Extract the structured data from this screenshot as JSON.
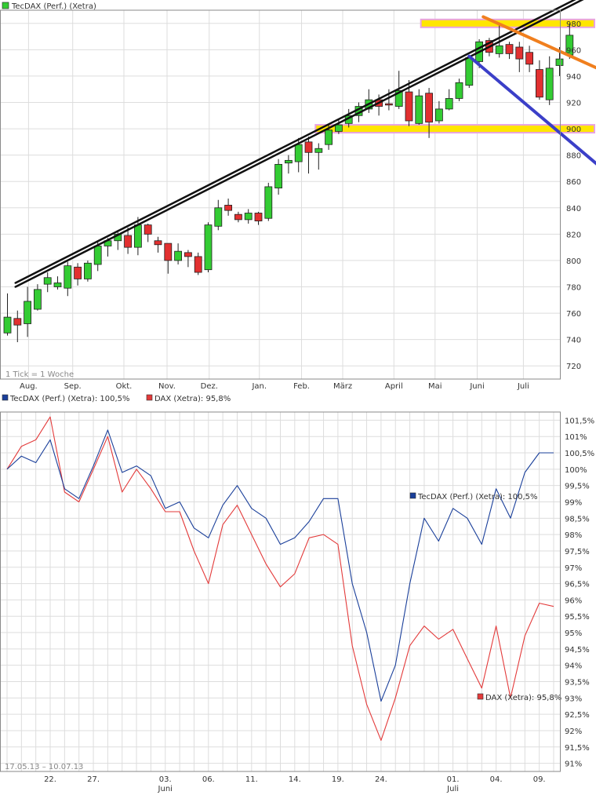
{
  "colors": {
    "grid": "#dddddd",
    "frame": "#8a8a8a",
    "text": "#333333",
    "subtle": "#888888",
    "up": "#33cc33",
    "down": "#e23030",
    "candle_edge": "#202020",
    "tecdax": "#1a3f9a",
    "dax": "#e33a3a",
    "channel": "#111111",
    "orange": "#f07f1e",
    "blue": "#3b3fc8",
    "band_fill": "#ffe600",
    "band_edge": "#e8a3e0"
  },
  "chart_data": [
    {
      "type": "candlestick",
      "legend": {
        "label": "TecDAX (Perf.) (Xetra)",
        "position": "top-left"
      },
      "footnote": "1 Tick = 1 Woche",
      "ylim": [
        710,
        990
      ],
      "y_ticks": [
        720,
        740,
        760,
        780,
        800,
        820,
        840,
        860,
        880,
        900,
        920,
        940,
        960,
        980
      ],
      "x_months": [
        {
          "label": "Aug.",
          "week": 2.1
        },
        {
          "label": "Sep.",
          "week": 6.5
        },
        {
          "label": "Okt.",
          "week": 11.6
        },
        {
          "label": "Nov.",
          "week": 15.9
        },
        {
          "label": "Dez.",
          "week": 20.1
        },
        {
          "label": "Jan.",
          "week": 25.1
        },
        {
          "label": "Feb.",
          "week": 29.3
        },
        {
          "label": "März",
          "week": 33.4
        },
        {
          "label": "April",
          "week": 38.5
        },
        {
          "label": "Mai",
          "week": 42.6
        },
        {
          "label": "Juni",
          "week": 46.8
        },
        {
          "label": "Juli",
          "week": 51.4
        }
      ],
      "candles": [
        [
          745,
          757,
          775,
          743
        ],
        [
          756,
          751,
          762,
          738
        ],
        [
          752,
          769,
          780,
          742
        ],
        [
          763,
          778,
          782,
          762
        ],
        [
          782,
          787,
          791,
          776
        ],
        [
          780,
          783,
          788,
          778
        ],
        [
          779,
          796,
          799,
          773
        ],
        [
          795,
          786,
          798,
          781
        ],
        [
          786,
          798,
          800,
          784
        ],
        [
          797,
          811,
          814,
          792
        ],
        [
          811,
          815,
          817,
          803
        ],
        [
          815,
          820,
          823,
          808
        ],
        [
          819,
          810,
          825,
          805
        ],
        [
          810,
          827,
          833,
          804
        ],
        [
          827,
          820,
          828,
          814
        ],
        [
          815,
          812,
          818,
          806
        ],
        [
          813,
          800,
          812,
          790
        ],
        [
          800,
          807,
          813,
          797
        ],
        [
          806,
          803,
          808,
          795
        ],
        [
          803,
          791,
          806,
          789
        ],
        [
          793,
          827,
          829,
          791
        ],
        [
          826,
          840,
          846,
          823
        ],
        [
          842,
          838,
          847,
          834
        ],
        [
          835,
          831,
          837,
          829
        ],
        [
          831,
          836,
          839,
          828
        ],
        [
          836,
          830,
          837,
          827
        ],
        [
          832,
          856,
          859,
          830
        ],
        [
          855,
          873,
          877,
          850
        ],
        [
          874,
          876,
          880,
          866
        ],
        [
          875,
          888,
          893,
          867
        ],
        [
          890,
          882,
          894,
          866
        ],
        [
          882,
          885,
          889,
          869
        ],
        [
          888,
          899,
          903,
          884
        ],
        [
          898,
          903,
          907,
          896
        ],
        [
          904,
          910,
          915,
          901
        ],
        [
          910,
          917,
          920,
          905
        ],
        [
          915,
          922,
          930,
          912
        ],
        [
          922,
          917,
          926,
          910
        ],
        [
          919,
          918,
          930,
          914
        ],
        [
          917,
          929,
          944,
          915
        ],
        [
          928,
          906,
          937,
          902
        ],
        [
          904,
          925,
          930,
          903
        ],
        [
          927,
          905,
          931,
          893
        ],
        [
          906,
          915,
          921,
          904
        ],
        [
          915,
          923,
          930,
          914
        ],
        [
          923,
          935,
          938,
          921
        ],
        [
          933,
          954,
          956,
          931
        ],
        [
          951,
          966,
          968,
          946
        ],
        [
          967,
          958,
          969,
          955
        ],
        [
          957,
          963,
          979,
          954
        ],
        [
          964,
          957,
          966,
          953
        ],
        [
          962,
          953,
          966,
          943
        ],
        [
          958,
          949,
          963,
          943
        ],
        [
          945,
          924,
          952,
          922
        ],
        [
          922,
          946,
          955,
          918
        ],
        [
          948,
          953,
          962,
          940
        ],
        [
          956,
          971,
          980,
          953
        ]
      ],
      "annotations": {
        "channel": [
          [
            780,
            0.8
          ],
          [
            1000,
            57.8
          ]
        ],
        "orange_trend": [
          [
            985,
            47.4
          ],
          [
            940,
            60.5
          ]
        ],
        "blue_trend": [
          [
            955,
            46.0
          ],
          [
            863,
            60.3
          ]
        ],
        "resistance_band": [
          980,
          0.5
        ],
        "support_band": [
          900,
          31.0
        ]
      }
    },
    {
      "type": "line",
      "legend_entries": [
        "TecDAX (Perf.) (Xetra): 100,5%",
        "DAX (Xetra): 95,8%"
      ],
      "date_range": "17.05.13 – 10.07.13",
      "ylim": [
        90.75,
        101.75
      ],
      "y_ticks": [
        "101,5%",
        "101%",
        "100,5%",
        "100%",
        "99,5%",
        "99%",
        "98,5%",
        "98%",
        "97,5%",
        "97%",
        "96,5%",
        "96%",
        "95,5%",
        "95%",
        "94,5%",
        "94%",
        "93,5%",
        "93%",
        "92,5%",
        "92%",
        "91,5%",
        "91%"
      ],
      "x_ticks": [
        {
          "label": "22.",
          "day": 3
        },
        {
          "label": "27.",
          "day": 6
        },
        {
          "label": "03.",
          "day": 11,
          "month": "Juni"
        },
        {
          "label": "06.",
          "day": 14
        },
        {
          "label": "11.",
          "day": 17
        },
        {
          "label": "14.",
          "day": 20
        },
        {
          "label": "19.",
          "day": 23
        },
        {
          "label": "24.",
          "day": 26
        },
        {
          "label": "01.",
          "day": 31,
          "month": "Juli"
        },
        {
          "label": "04.",
          "day": 34
        },
        {
          "label": "09.",
          "day": 37
        }
      ],
      "series": [
        {
          "name": "TecDAX (Perf.) (Xetra)",
          "label": "TecDAX (Perf.) (Xetra): 100,5%",
          "values": [
            100.0,
            100.4,
            100.2,
            100.9,
            99.4,
            99.1,
            100.1,
            101.2,
            99.9,
            100.1,
            99.8,
            98.8,
            99.0,
            98.2,
            97.9,
            98.9,
            99.5,
            98.8,
            98.5,
            97.7,
            97.9,
            98.4,
            99.1,
            99.1,
            96.5,
            95.0,
            92.9,
            94.0,
            96.5,
            98.5,
            97.8,
            98.8,
            98.5,
            97.7,
            99.4,
            98.5,
            99.9,
            100.5,
            100.5
          ]
        },
        {
          "name": "DAX (Xetra)",
          "label": "DAX (Xetra): 95,8%",
          "values": [
            100.0,
            100.7,
            100.9,
            101.6,
            99.3,
            99.0,
            100.0,
            101.0,
            99.3,
            100.0,
            99.4,
            98.7,
            98.7,
            97.5,
            96.5,
            98.3,
            98.9,
            98.0,
            97.1,
            96.4,
            96.8,
            97.9,
            98.0,
            97.7,
            94.6,
            92.8,
            91.7,
            93.0,
            94.6,
            95.2,
            94.8,
            95.1,
            94.2,
            93.3,
            95.2,
            93.0,
            94.9,
            95.9,
            95.8
          ]
        }
      ]
    }
  ]
}
